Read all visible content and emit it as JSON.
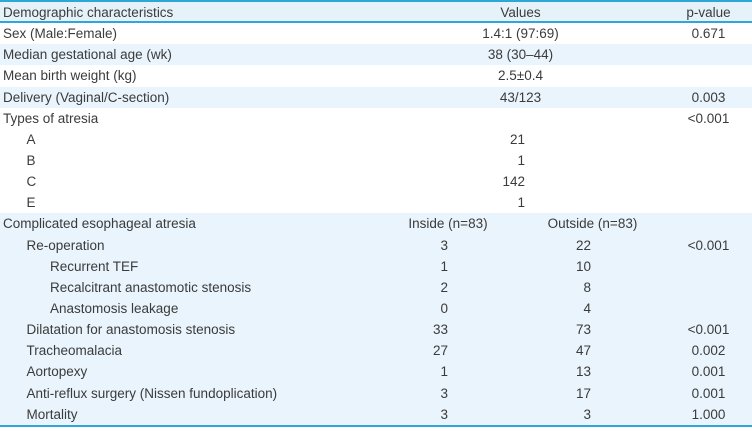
{
  "colors": {
    "accent_blue": "#2ea7d8",
    "header_bg": "#e6f2fa",
    "stripe_bg": "#e9f4fc",
    "text": "#3b3b3b"
  },
  "table": {
    "header": {
      "label": "Demographic characteristics",
      "values": "Values",
      "pvalue": "p-value"
    },
    "rows": [
      {
        "label": "Sex (Male:Female)",
        "indent": 0,
        "stripe": false,
        "type": "single",
        "value": "1.4:1 (97:69)",
        "p": "0.671"
      },
      {
        "label": "Median gestational age (wk)",
        "indent": 0,
        "stripe": true,
        "type": "single",
        "value": "38 (30–44)",
        "p": ""
      },
      {
        "label": "Mean birth weight (kg)",
        "indent": 0,
        "stripe": false,
        "type": "single",
        "value": "2.5±0.4",
        "p": ""
      },
      {
        "label": "Delivery (Vaginal/C-section)",
        "indent": 0,
        "stripe": true,
        "type": "single",
        "value": "43/123",
        "p": "0.003"
      },
      {
        "label": "Types of atresia",
        "indent": 0,
        "stripe": false,
        "type": "single",
        "value": "",
        "p": "<0.001"
      },
      {
        "label": "A",
        "indent": 1,
        "stripe": false,
        "type": "count",
        "value": "21",
        "p": ""
      },
      {
        "label": "B",
        "indent": 1,
        "stripe": false,
        "type": "count",
        "value": "1",
        "p": ""
      },
      {
        "label": "C",
        "indent": 1,
        "stripe": false,
        "type": "count",
        "value": "142",
        "p": ""
      },
      {
        "label": "E",
        "indent": 1,
        "stripe": false,
        "type": "count",
        "value": "1",
        "p": ""
      },
      {
        "label": "Complicated esophageal atresia",
        "indent": 0,
        "stripe": true,
        "type": "subheader",
        "v1": "Inside (n=83)",
        "v2": "Outside (n=83)",
        "p": ""
      },
      {
        "label": "Re-operation",
        "indent": 1,
        "stripe": true,
        "type": "two",
        "v1": "3",
        "v2": "22",
        "p": "<0.001"
      },
      {
        "label": "Recurrent TEF",
        "indent": 2,
        "stripe": true,
        "type": "two",
        "v1": "1",
        "v2": "10",
        "p": ""
      },
      {
        "label": "Recalcitrant anastomotic stenosis",
        "indent": 2,
        "stripe": true,
        "type": "two",
        "v1": "2",
        "v2": "8",
        "p": ""
      },
      {
        "label": "Anastomosis leakage",
        "indent": 2,
        "stripe": true,
        "type": "two",
        "v1": "0",
        "v2": "4",
        "p": ""
      },
      {
        "label": "Dilatation for anastomosis stenosis",
        "indent": 1,
        "stripe": true,
        "type": "two",
        "v1": "33",
        "v2": "73",
        "p": "<0.001"
      },
      {
        "label": "Tracheomalacia",
        "indent": 1,
        "stripe": true,
        "type": "two",
        "v1": "27",
        "v2": "47",
        "p": "0.002"
      },
      {
        "label": "Aortopexy",
        "indent": 1,
        "stripe": true,
        "type": "two",
        "v1": "1",
        "v2": "13",
        "p": "0.001"
      },
      {
        "label": "Anti-reflux surgery (Nissen fundoplication)",
        "indent": 1,
        "stripe": true,
        "type": "two",
        "v1": "3",
        "v2": "17",
        "p": "0.001"
      },
      {
        "label": "Mortality",
        "indent": 1,
        "stripe": true,
        "type": "two",
        "v1": "3",
        "v2": "3",
        "p": "1.000"
      }
    ]
  }
}
